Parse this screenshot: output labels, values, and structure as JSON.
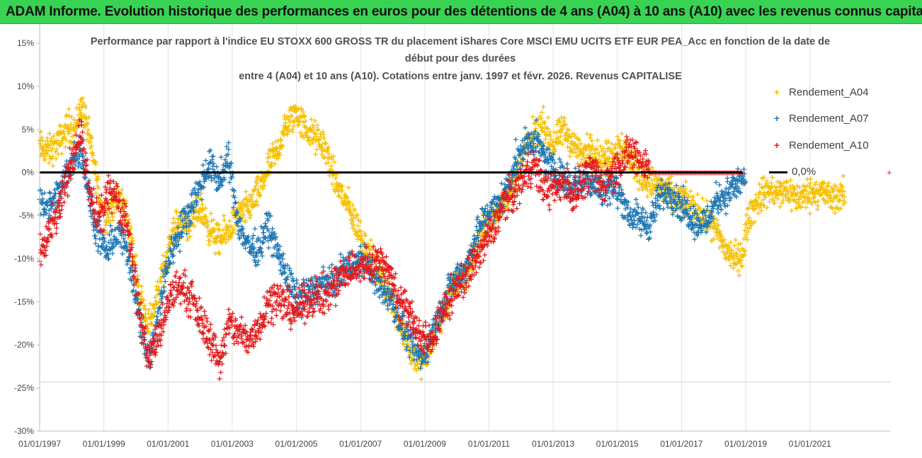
{
  "banner": {
    "text": "ADAM Informe. Evolution historique des performances en euros pour des détentions de 4 ans (A04) à 10 ans (A10) avec les revenus connus capitalisés"
  },
  "chart_data": {
    "type": "scatter",
    "title_lines": [
      "Performance par rapport à l'indice EU STOXX 600 GROSS TR  du placement iShares Core MSCI EMU UCITS ETF EUR PEA_Acc en fonction de la date de",
      "début pour des durées",
      "entre 4 (A04) et 10 ans (A10).  Cotations entre janv. 1997 et févr. 2026. Revenus CAPITALISE"
    ],
    "xlabel": "",
    "ylabel": "",
    "x_range": [
      1997.0,
      2023.5
    ],
    "ylim": [
      -30,
      15
    ],
    "y_ticks": [
      15,
      10,
      5,
      0,
      -5,
      -10,
      -15,
      -20,
      -25,
      -30
    ],
    "y_tick_labels": [
      "15%",
      "10%",
      "5%",
      "0%",
      "-5%",
      "-10%",
      "-15%",
      "-20%",
      "-25%",
      "-30%"
    ],
    "x_ticks": [
      1997,
      1999,
      2001,
      2003,
      2005,
      2007,
      2009,
      2011,
      2013,
      2015,
      2017,
      2019,
      2021
    ],
    "x_tick_labels": [
      "01/01/1997",
      "01/01/1999",
      "01/01/2001",
      "01/01/2003",
      "01/01/2005",
      "01/01/2007",
      "01/01/2009",
      "01/01/2011",
      "01/01/2013",
      "01/01/2015",
      "01/01/2017",
      "01/01/2019",
      "01/01/2021"
    ],
    "grid": "vertical",
    "legend_position": "right",
    "series": [
      {
        "name": "Rendement_A04",
        "color": "#f5c000",
        "marker": "+",
        "x_end": 2022.1,
        "spread": 1.4,
        "points": [
          [
            1997.0,
            3.0
          ],
          [
            1997.3,
            2.5
          ],
          [
            1997.6,
            3.5
          ],
          [
            1997.9,
            5.5
          ],
          [
            1998.1,
            5.0
          ],
          [
            1998.3,
            8.0
          ],
          [
            1998.5,
            5.0
          ],
          [
            1998.7,
            1.0
          ],
          [
            1998.9,
            -3.5
          ],
          [
            1999.1,
            -5.0
          ],
          [
            1999.3,
            -3.5
          ],
          [
            1999.5,
            -3.0
          ],
          [
            1999.7,
            -4.5
          ],
          [
            1999.9,
            -9.0
          ],
          [
            2000.1,
            -14.0
          ],
          [
            2000.4,
            -17.5
          ],
          [
            2000.7,
            -14.0
          ],
          [
            2000.9,
            -10.5
          ],
          [
            2001.1,
            -7.5
          ],
          [
            2001.4,
            -5.5
          ],
          [
            2001.7,
            -6.0
          ],
          [
            2002.0,
            -4.0
          ],
          [
            2002.3,
            -6.5
          ],
          [
            2002.6,
            -8.0
          ],
          [
            2002.9,
            -6.5
          ],
          [
            2003.2,
            -5.0
          ],
          [
            2003.5,
            -4.0
          ],
          [
            2003.8,
            -2.5
          ],
          [
            2004.1,
            0.5
          ],
          [
            2004.4,
            2.5
          ],
          [
            2004.7,
            5.5
          ],
          [
            2005.0,
            7.0
          ],
          [
            2005.3,
            5.0
          ],
          [
            2005.6,
            4.0
          ],
          [
            2005.9,
            3.0
          ],
          [
            2006.2,
            -1.0
          ],
          [
            2006.5,
            -3.0
          ],
          [
            2006.8,
            -5.5
          ],
          [
            2007.1,
            -8.0
          ],
          [
            2007.4,
            -10.5
          ],
          [
            2007.7,
            -12.5
          ],
          [
            2008.0,
            -15.0
          ],
          [
            2008.3,
            -18.0
          ],
          [
            2008.6,
            -21.0
          ],
          [
            2008.9,
            -22.0
          ],
          [
            2009.1,
            -21.0
          ],
          [
            2009.4,
            -18.0
          ],
          [
            2009.7,
            -15.0
          ],
          [
            2010.0,
            -12.5
          ],
          [
            2010.3,
            -11.5
          ],
          [
            2010.6,
            -9.0
          ],
          [
            2010.9,
            -6.0
          ],
          [
            2011.2,
            -5.0
          ],
          [
            2011.5,
            -3.0
          ],
          [
            2011.8,
            -1.0
          ],
          [
            2012.1,
            2.5
          ],
          [
            2012.4,
            4.5
          ],
          [
            2012.7,
            5.5
          ],
          [
            2013.0,
            3.0
          ],
          [
            2013.3,
            5.0
          ],
          [
            2013.6,
            3.5
          ],
          [
            2013.9,
            2.0
          ],
          [
            2014.2,
            3.0
          ],
          [
            2014.5,
            1.5
          ],
          [
            2014.8,
            2.0
          ],
          [
            2015.1,
            3.5
          ],
          [
            2015.4,
            1.5
          ],
          [
            2015.7,
            0.0
          ],
          [
            2016.0,
            -1.0
          ],
          [
            2016.3,
            -1.5
          ],
          [
            2016.6,
            -2.5
          ],
          [
            2016.9,
            -3.0
          ],
          [
            2017.2,
            -3.5
          ],
          [
            2017.5,
            -4.5
          ],
          [
            2017.8,
            -5.5
          ],
          [
            2018.1,
            -7.0
          ],
          [
            2018.4,
            -9.0
          ],
          [
            2018.7,
            -10.0
          ],
          [
            2018.9,
            -9.5
          ],
          [
            2019.1,
            -5.0
          ],
          [
            2019.4,
            -3.0
          ],
          [
            2019.7,
            -2.0
          ],
          [
            2020.0,
            -2.5
          ],
          [
            2020.3,
            -2.0
          ],
          [
            2020.6,
            -3.0
          ],
          [
            2020.9,
            -2.5
          ],
          [
            2021.3,
            -2.0
          ],
          [
            2021.7,
            -3.0
          ],
          [
            2022.1,
            -2.5
          ]
        ]
      },
      {
        "name": "Rendement_A07",
        "color": "#1f77b4",
        "marker": "+",
        "x_end": 2019.0,
        "spread": 1.4,
        "points": [
          [
            1997.0,
            -3.0
          ],
          [
            1997.3,
            -4.0
          ],
          [
            1997.6,
            -2.5
          ],
          [
            1997.9,
            0.5
          ],
          [
            1998.1,
            2.0
          ],
          [
            1998.3,
            3.0
          ],
          [
            1998.5,
            -2.0
          ],
          [
            1998.7,
            -6.0
          ],
          [
            1998.9,
            -8.0
          ],
          [
            1999.1,
            -9.5
          ],
          [
            1999.3,
            -7.5
          ],
          [
            1999.5,
            -7.0
          ],
          [
            1999.7,
            -9.0
          ],
          [
            1999.9,
            -12.0
          ],
          [
            2000.1,
            -17.0
          ],
          [
            2000.4,
            -22.0
          ],
          [
            2000.7,
            -17.0
          ],
          [
            2000.9,
            -12.0
          ],
          [
            2001.1,
            -9.0
          ],
          [
            2001.4,
            -6.5
          ],
          [
            2001.7,
            -4.0
          ],
          [
            2002.0,
            -1.5
          ],
          [
            2002.3,
            1.0
          ],
          [
            2002.6,
            -1.0
          ],
          [
            2002.9,
            1.5
          ],
          [
            2003.2,
            -6.0
          ],
          [
            2003.5,
            -8.5
          ],
          [
            2003.8,
            -9.0
          ],
          [
            2004.1,
            -6.0
          ],
          [
            2004.4,
            -9.0
          ],
          [
            2004.7,
            -12.0
          ],
          [
            2005.0,
            -14.5
          ],
          [
            2005.3,
            -14.0
          ],
          [
            2005.6,
            -13.5
          ],
          [
            2005.9,
            -12.5
          ],
          [
            2006.2,
            -13.0
          ],
          [
            2006.5,
            -11.0
          ],
          [
            2006.8,
            -10.5
          ],
          [
            2007.1,
            -10.0
          ],
          [
            2007.4,
            -12.0
          ],
          [
            2007.7,
            -13.5
          ],
          [
            2008.0,
            -15.0
          ],
          [
            2008.3,
            -18.0
          ],
          [
            2008.6,
            -20.0
          ],
          [
            2008.9,
            -21.5
          ],
          [
            2009.1,
            -20.0
          ],
          [
            2009.4,
            -17.0
          ],
          [
            2009.7,
            -14.0
          ],
          [
            2010.0,
            -12.0
          ],
          [
            2010.3,
            -11.0
          ],
          [
            2010.6,
            -7.0
          ],
          [
            2010.9,
            -5.0
          ],
          [
            2011.2,
            -4.0
          ],
          [
            2011.5,
            -2.5
          ],
          [
            2011.8,
            1.0
          ],
          [
            2012.1,
            3.0
          ],
          [
            2012.4,
            4.0
          ],
          [
            2012.7,
            2.0
          ],
          [
            2013.0,
            0.5
          ],
          [
            2013.3,
            -0.5
          ],
          [
            2013.6,
            -1.5
          ],
          [
            2013.9,
            -1.0
          ],
          [
            2014.2,
            -1.0
          ],
          [
            2014.5,
            -2.0
          ],
          [
            2014.8,
            -1.5
          ],
          [
            2015.1,
            -2.5
          ],
          [
            2015.4,
            -5.0
          ],
          [
            2015.7,
            -5.5
          ],
          [
            2016.0,
            -6.0
          ],
          [
            2016.3,
            -3.0
          ],
          [
            2016.6,
            -2.0
          ],
          [
            2016.9,
            -3.5
          ],
          [
            2017.2,
            -4.5
          ],
          [
            2017.5,
            -6.0
          ],
          [
            2017.8,
            -5.5
          ],
          [
            2018.1,
            -3.0
          ],
          [
            2018.4,
            -2.5
          ],
          [
            2018.7,
            -1.5
          ],
          [
            2019.0,
            -0.5
          ]
        ]
      },
      {
        "name": "Rendement_A10",
        "color": "#e31a1c",
        "marker": "+",
        "x_end": 2016.0,
        "spread": 1.6,
        "points": [
          [
            1997.0,
            -10.0
          ],
          [
            1997.3,
            -7.0
          ],
          [
            1997.6,
            -4.5
          ],
          [
            1997.9,
            0.0
          ],
          [
            1998.1,
            3.0
          ],
          [
            1998.3,
            4.5
          ],
          [
            1998.5,
            -1.5
          ],
          [
            1998.7,
            -4.5
          ],
          [
            1998.9,
            -5.5
          ],
          [
            1999.1,
            -3.0
          ],
          [
            1999.3,
            -1.5
          ],
          [
            1999.5,
            -4.0
          ],
          [
            1999.7,
            -5.5
          ],
          [
            1999.9,
            -10.0
          ],
          [
            2000.1,
            -16.0
          ],
          [
            2000.4,
            -21.5
          ],
          [
            2000.7,
            -19.0
          ],
          [
            2000.9,
            -17.0
          ],
          [
            2001.1,
            -14.0
          ],
          [
            2001.4,
            -13.0
          ],
          [
            2001.7,
            -14.5
          ],
          [
            2002.0,
            -17.0
          ],
          [
            2002.3,
            -19.0
          ],
          [
            2002.6,
            -22.0
          ],
          [
            2002.9,
            -17.5
          ],
          [
            2003.2,
            -18.5
          ],
          [
            2003.5,
            -19.5
          ],
          [
            2003.8,
            -18.0
          ],
          [
            2004.1,
            -15.0
          ],
          [
            2004.4,
            -14.5
          ],
          [
            2004.7,
            -15.5
          ],
          [
            2005.0,
            -16.0
          ],
          [
            2005.3,
            -15.0
          ],
          [
            2005.6,
            -14.0
          ],
          [
            2005.9,
            -14.5
          ],
          [
            2006.2,
            -12.5
          ],
          [
            2006.5,
            -11.5
          ],
          [
            2006.8,
            -11.0
          ],
          [
            2007.1,
            -11.0
          ],
          [
            2007.4,
            -10.5
          ],
          [
            2007.7,
            -10.0
          ],
          [
            2008.0,
            -13.0
          ],
          [
            2008.3,
            -15.0
          ],
          [
            2008.6,
            -17.0
          ],
          [
            2008.9,
            -19.0
          ],
          [
            2009.1,
            -20.0
          ],
          [
            2009.4,
            -17.5
          ],
          [
            2009.7,
            -15.5
          ],
          [
            2010.0,
            -13.0
          ],
          [
            2010.3,
            -12.0
          ],
          [
            2010.6,
            -10.0
          ],
          [
            2010.9,
            -8.0
          ],
          [
            2011.2,
            -6.0
          ],
          [
            2011.5,
            -3.0
          ],
          [
            2011.8,
            -2.5
          ],
          [
            2012.1,
            0.0
          ],
          [
            2012.4,
            1.0
          ],
          [
            2012.7,
            -1.5
          ],
          [
            2013.0,
            -2.0
          ],
          [
            2013.3,
            -1.0
          ],
          [
            2013.6,
            -2.5
          ],
          [
            2013.9,
            -1.0
          ],
          [
            2014.2,
            0.5
          ],
          [
            2014.5,
            -1.5
          ],
          [
            2014.8,
            0.0
          ],
          [
            2015.1,
            1.0
          ],
          [
            2015.4,
            2.5
          ],
          [
            2015.7,
            1.5
          ],
          [
            2016.0,
            0.5
          ]
        ]
      }
    ],
    "flat_segment": {
      "series": "Rendement_A10",
      "x": [
        2016.0,
        2018.9
      ],
      "y": 0
    },
    "reference_line": {
      "name": "0,0%",
      "y": 0,
      "color": "#000000"
    }
  }
}
